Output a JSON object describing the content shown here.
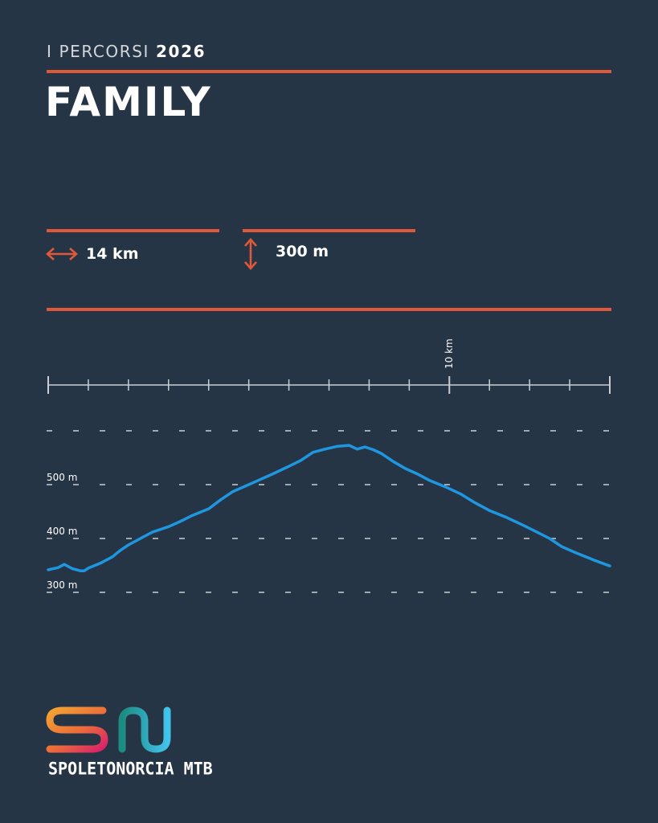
{
  "header": {
    "kicker_prefix": "I PERCORSI",
    "kicker_year": "2026",
    "title": "FAMILY"
  },
  "stats": {
    "distance": "14 km",
    "elevation": "300 m",
    "distance_icon": "horizontal-double-arrow-icon",
    "elevation_icon": "vertical-double-arrow-icon"
  },
  "brand": {
    "name": "SPOLETONORCIA MTB",
    "logo_letters": "SN"
  },
  "colors": {
    "background": "#263545",
    "accent": "#e0583a",
    "profile_line": "#1e97e0",
    "axis": "#c9ced4"
  },
  "chart_data": {
    "type": "line",
    "title": "",
    "xlabel": "",
    "ylabel": "",
    "x_unit": "km",
    "y_unit": "m",
    "xlim": [
      0,
      14
    ],
    "ylim": [
      300,
      600
    ],
    "x_ticks": [
      0,
      1,
      2,
      3,
      4,
      5,
      6,
      7,
      8,
      9,
      10,
      11,
      12,
      13,
      14
    ],
    "x_tick_labels": [
      {
        "value": 10,
        "label": "10 km"
      }
    ],
    "y_gridlines": [
      300,
      400,
      500,
      600
    ],
    "y_tick_labels": [
      {
        "value": 300,
        "label": "300 m"
      },
      {
        "value": 400,
        "label": "400 m"
      },
      {
        "value": 500,
        "label": "500 m"
      }
    ],
    "grid": "dashed-horizontal",
    "series": [
      {
        "x": [
          0,
          0.25,
          0.4,
          0.6,
          0.8,
          0.9,
          1.0,
          1.3,
          1.6,
          1.8,
          2.0,
          2.3,
          2.6,
          3.0,
          3.3,
          3.6,
          4.0,
          4.3,
          4.6,
          5.0,
          5.3,
          5.6,
          6.0,
          6.3,
          6.6,
          6.9,
          7.2,
          7.5,
          7.7,
          7.9,
          8.1,
          8.3,
          8.6,
          8.9,
          9.2,
          9.5,
          9.9,
          10.3,
          10.6,
          11.0,
          11.4,
          11.8,
          12.1,
          12.5,
          12.8,
          13.2,
          13.6,
          14.0
        ],
        "y": [
          342,
          346,
          352,
          344,
          340,
          340,
          345,
          354,
          366,
          378,
          388,
          400,
          412,
          422,
          432,
          443,
          455,
          472,
          487,
          500,
          510,
          520,
          534,
          545,
          560,
          566,
          571,
          573,
          566,
          570,
          565,
          558,
          543,
          530,
          520,
          508,
          496,
          482,
          468,
          452,
          440,
          426,
          415,
          400,
          385,
          372,
          360,
          349
        ]
      }
    ]
  }
}
